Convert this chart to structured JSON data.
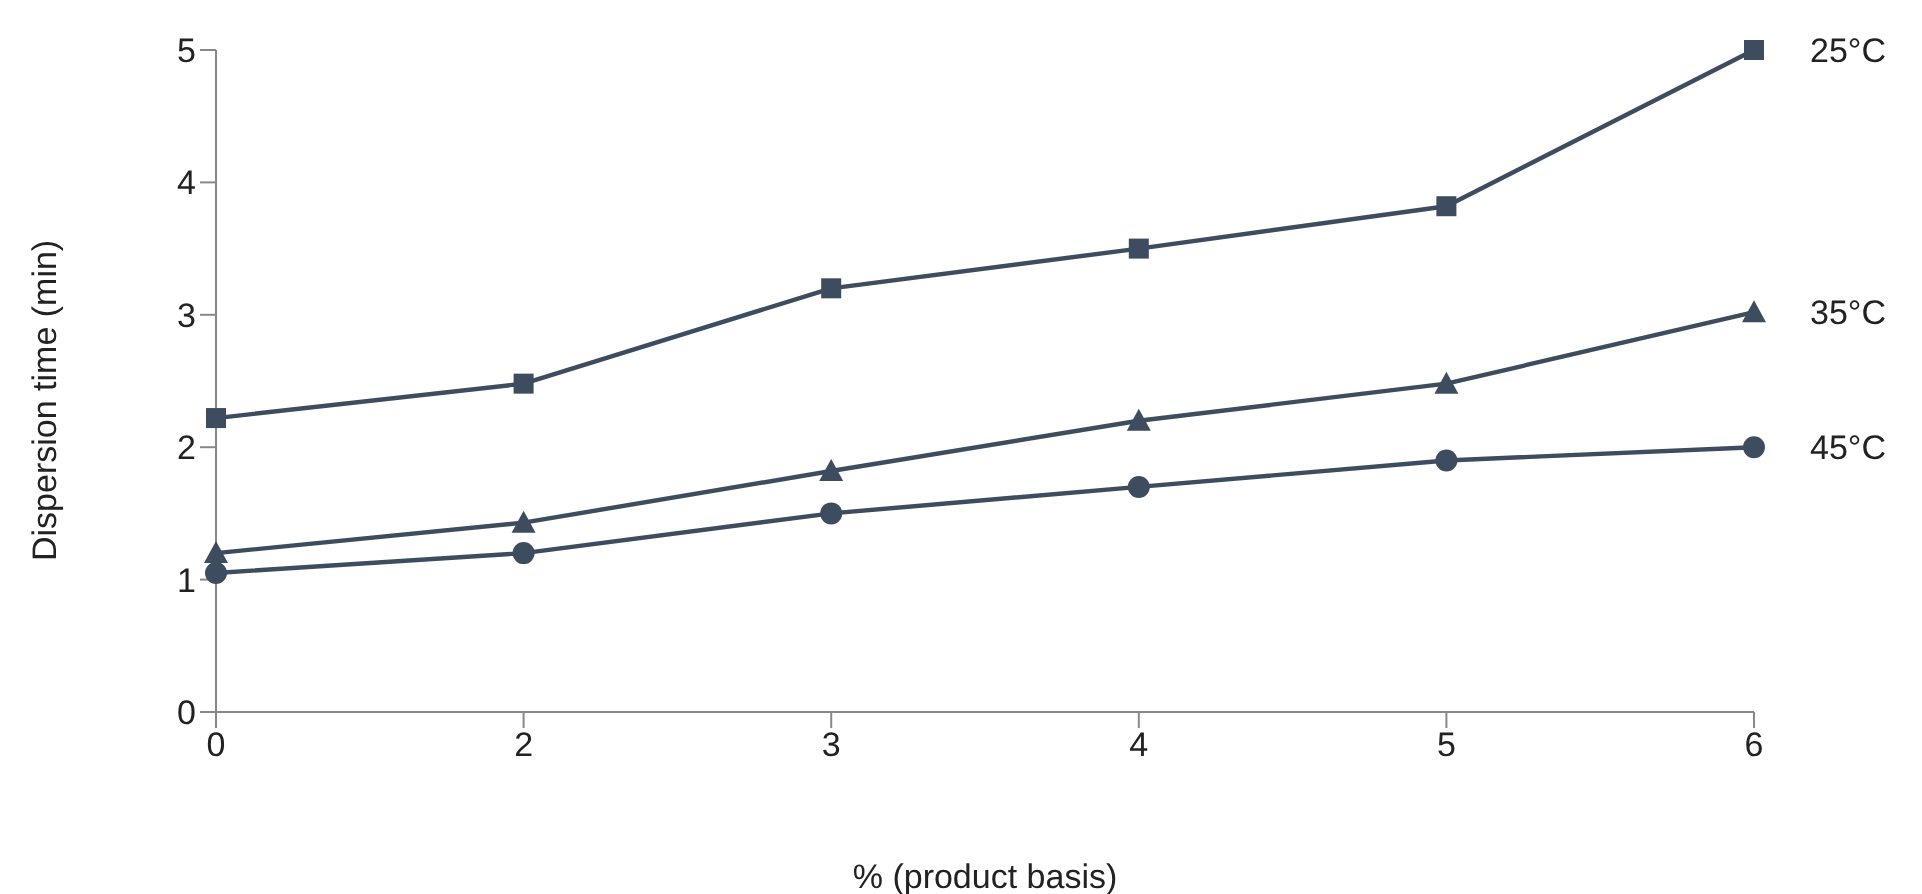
{
  "chart_data": {
    "type": "line",
    "xlabel": "% (product basis)",
    "ylabel": "Dispersion time (min)",
    "categories": [
      "0",
      "2",
      "3",
      "4",
      "5",
      "6"
    ],
    "ylim": [
      0,
      5
    ],
    "yticks": [
      0,
      1,
      2,
      3,
      4,
      5
    ],
    "grid": false,
    "legend": false,
    "line_style": "solid",
    "series": [
      {
        "name": "25°C",
        "color": "#3d4c5e",
        "marker": "square",
        "values": [
          2.22,
          2.48,
          3.2,
          3.5,
          3.82,
          5.0
        ]
      },
      {
        "name": "35°C",
        "color": "#3d4c5e",
        "marker": "triangle",
        "values": [
          1.2,
          1.43,
          1.82,
          2.2,
          2.48,
          3.02
        ]
      },
      {
        "name": "45°C",
        "color": "#3d4c5e",
        "marker": "circle",
        "values": [
          1.05,
          1.2,
          1.5,
          1.7,
          1.9,
          2.0
        ]
      }
    ]
  }
}
